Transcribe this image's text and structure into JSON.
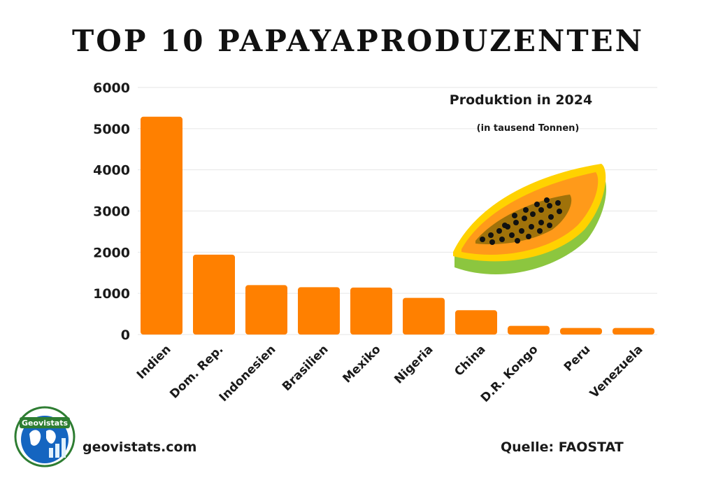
{
  "title": "TOP 10 PAPAYAPRODUZENTEN",
  "website": "geovistats.com",
  "source": "Quelle: FAOSTAT",
  "logo_text": "Geovistats",
  "colors": {
    "bar": "#ff8000",
    "grid": "#e6e6e6",
    "text": "#1a1a1a"
  },
  "chart_data": {
    "type": "bar",
    "title": "Produktion in 2024",
    "subtitle": "(in tausend Tonnen)",
    "categories": [
      "Indien",
      "Dom. Rep.",
      "Indonesien",
      "Brasilien",
      "Mexiko",
      "Nigeria",
      "China",
      "D.R. Kongo",
      "Peru",
      "Venezuela"
    ],
    "values": [
      5290,
      1940,
      1200,
      1150,
      1140,
      890,
      590,
      210,
      160,
      160
    ],
    "yticks": [
      0,
      1000,
      2000,
      3000,
      4000,
      5000,
      6000
    ],
    "ylim": [
      0,
      6000
    ],
    "grid": true,
    "legend": "none"
  }
}
